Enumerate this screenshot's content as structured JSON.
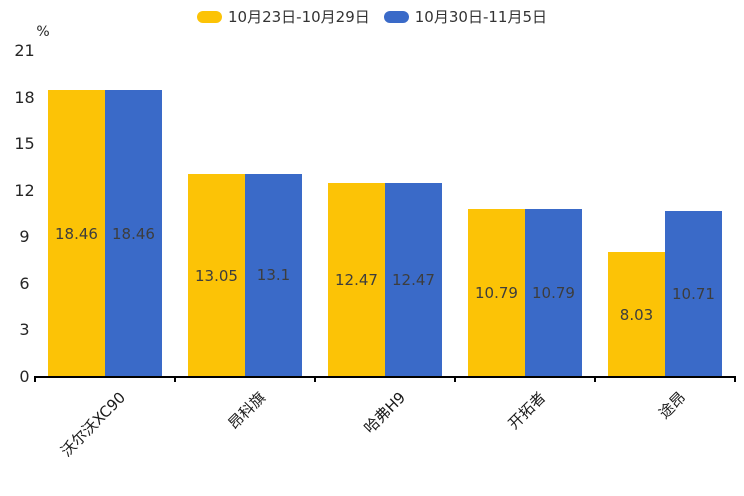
{
  "legend": {
    "items": [
      {
        "label": "10月23日-10月29日",
        "color": "#FCC306"
      },
      {
        "label": "10月30日-11月5日",
        "color": "#3A6AC8"
      }
    ]
  },
  "chart_data": {
    "type": "bar",
    "title": "",
    "unit_label": "%",
    "categories": [
      "沃尔沃XC90",
      "昂科旗",
      "哈弗H9",
      "开拓者",
      "途昂"
    ],
    "series": [
      {
        "name": "10月23日-10月29日",
        "color": "#FCC306",
        "values": [
          18.46,
          13.05,
          12.47,
          10.79,
          8.03
        ]
      },
      {
        "name": "10月30日-11月5日",
        "color": "#3A6AC8",
        "values": [
          18.46,
          13.1,
          12.47,
          10.79,
          10.71
        ]
      }
    ],
    "ylim": [
      0,
      21
    ],
    "yticks": [
      0,
      3,
      6,
      9,
      12,
      15,
      18,
      21
    ],
    "grid": false,
    "legend_position": "top-center",
    "value_labels_shown": true,
    "axis_color": "#000000",
    "tick_text_color": "#262626",
    "value_label_color": "#3d3d3d"
  }
}
